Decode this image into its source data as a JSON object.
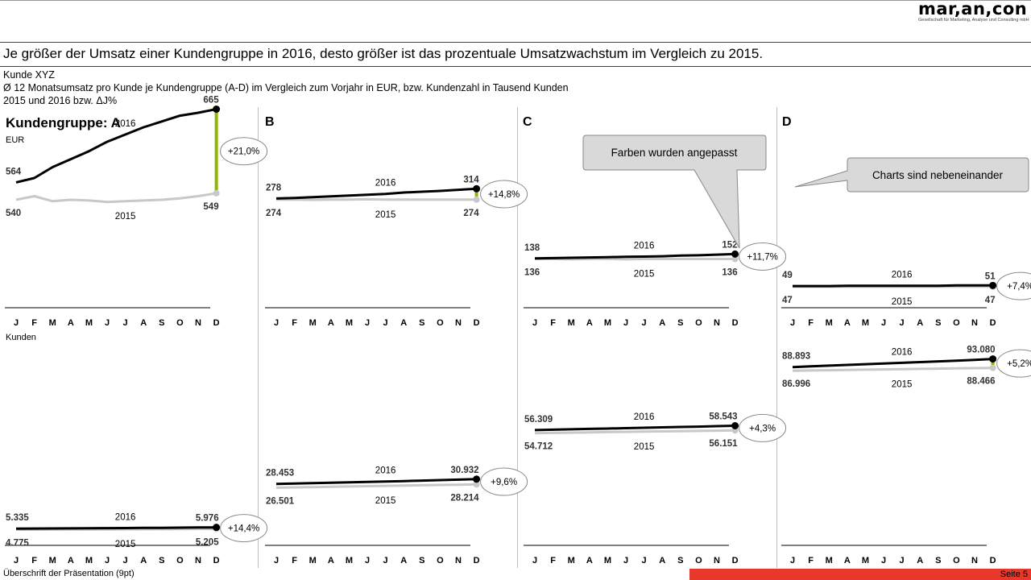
{
  "logo": {
    "text": "mar,an,con",
    "subtitle": "Gesellschaft für Marketing, Analyse und Consulting mbH"
  },
  "headline": "Je größer der Umsatz einer Kundengruppe in 2016, desto größer ist das prozentuale Umsatzwachstum im Vergleich zu 2015.",
  "meta": {
    "line1": "Kunde XYZ",
    "line2": "Ø 12 Monatsumsatz pro Kunde je Kundengruppe (A-D) im Vergleich zum Vorjahr in EUR, bzw. Kundenzahl in Tausend Kunden",
    "line3": "2015 und 2016  bzw. ΔJ%"
  },
  "panel_titles": [
    "Kundengruppe: A",
    "B",
    "C",
    "D"
  ],
  "row_labels": {
    "eur": "EUR",
    "kunden": "Kunden"
  },
  "footer": {
    "left": "Überschrift der Präsentation (9pt)",
    "page": "Seite 5"
  },
  "callouts": [
    {
      "text": "Farben wurden angepasst"
    },
    {
      "text": "Charts sind nebeneinander"
    }
  ],
  "colors": {
    "current": "#000000",
    "previous": "#c8c8c8",
    "delta_positive": "#8db600",
    "footer_bar": "#e8372b"
  },
  "chart_data": [
    {
      "type": "line",
      "group": "A",
      "measure": "EUR",
      "categories": [
        "J",
        "F",
        "M",
        "A",
        "M",
        "J",
        "J",
        "A",
        "S",
        "O",
        "N",
        "D"
      ],
      "series": [
        {
          "name": "2016",
          "values": [
            564,
            570,
            585,
            596,
            607,
            620,
            630,
            640,
            648,
            656,
            660,
            665
          ],
          "start_label": "564",
          "end_label": "665"
        },
        {
          "name": "2015",
          "values": [
            540,
            545,
            538,
            540,
            539,
            537,
            538,
            539,
            540,
            542,
            545,
            549
          ],
          "start_label": "540",
          "end_label": "549"
        }
      ],
      "delta": "+21,0%",
      "ylim": [
        400,
        700
      ]
    },
    {
      "type": "line",
      "group": "A",
      "measure": "Kunden",
      "categories": [
        "J",
        "F",
        "M",
        "A",
        "M",
        "J",
        "J",
        "A",
        "S",
        "O",
        "N",
        "D"
      ],
      "series": [
        {
          "name": "2016",
          "values": [
            5335,
            5380,
            5420,
            5470,
            5520,
            5580,
            5640,
            5700,
            5760,
            5830,
            5900,
            5976
          ],
          "start_label": "5.335",
          "end_label": "5.976"
        },
        {
          "name": "2015",
          "values": [
            4775,
            4800,
            4830,
            4860,
            4890,
            4920,
            4950,
            4990,
            5040,
            5090,
            5150,
            5205
          ],
          "start_label": "4.775",
          "end_label": "5.205"
        }
      ],
      "delta": "+14,4%",
      "ylim": [
        0,
        100000
      ]
    },
    {
      "type": "line",
      "group": "B",
      "measure": "EUR",
      "categories": [
        "J",
        "F",
        "M",
        "A",
        "M",
        "J",
        "J",
        "A",
        "S",
        "O",
        "N",
        "D"
      ],
      "series": [
        {
          "name": "2016",
          "values": [
            278,
            280,
            283,
            286,
            289,
            292,
            295,
            300,
            303,
            306,
            310,
            314
          ],
          "start_label": "278",
          "end_label": "314"
        },
        {
          "name": "2015",
          "values": [
            274,
            274,
            273,
            274,
            274,
            275,
            274,
            274,
            274,
            274,
            274,
            274
          ],
          "start_label": "274",
          "end_label": "274"
        }
      ],
      "delta": "+14,8%",
      "ylim": [
        -100,
        700
      ]
    },
    {
      "type": "line",
      "group": "B",
      "measure": "Kunden",
      "categories": [
        "J",
        "F",
        "M",
        "A",
        "M",
        "J",
        "J",
        "A",
        "S",
        "O",
        "N",
        "D"
      ],
      "series": [
        {
          "name": "2016",
          "values": [
            28453,
            28650,
            28850,
            29050,
            29250,
            29480,
            29700,
            29930,
            30160,
            30400,
            30660,
            30932
          ],
          "start_label": "28.453",
          "end_label": "30.932"
        },
        {
          "name": "2015",
          "values": [
            26501,
            26650,
            26800,
            26960,
            27120,
            27280,
            27440,
            27600,
            27760,
            27920,
            28060,
            28214
          ],
          "start_label": "26.501",
          "end_label": "28.214"
        }
      ],
      "delta": "+9,6%",
      "ylim": [
        0,
        100000
      ]
    },
    {
      "type": "line",
      "group": "C",
      "measure": "EUR",
      "categories": [
        "J",
        "F",
        "M",
        "A",
        "M",
        "J",
        "J",
        "A",
        "S",
        "O",
        "N",
        "D"
      ],
      "series": [
        {
          "name": "2016",
          "values": [
            138,
            139,
            140,
            141,
            142,
            143,
            144,
            145,
            147,
            148,
            150,
            152
          ],
          "start_label": "138",
          "end_label": "152"
        },
        {
          "name": "2015",
          "values": [
            136,
            136,
            135,
            136,
            136,
            135,
            136,
            136,
            136,
            136,
            136,
            136
          ],
          "start_label": "136",
          "end_label": "136"
        }
      ],
      "delta": "+11,7%",
      "ylim": [
        0,
        700
      ]
    },
    {
      "type": "line",
      "group": "C",
      "measure": "Kunden",
      "categories": [
        "J",
        "F",
        "M",
        "A",
        "M",
        "J",
        "J",
        "A",
        "S",
        "O",
        "N",
        "D"
      ],
      "series": [
        {
          "name": "2016",
          "values": [
            56309,
            56500,
            56700,
            56900,
            57100,
            57300,
            57500,
            57700,
            57900,
            58100,
            58320,
            58543
          ],
          "start_label": "56.309",
          "end_label": "58.543"
        },
        {
          "name": "2015",
          "values": [
            54712,
            54840,
            54970,
            55100,
            55230,
            55360,
            55490,
            55620,
            55760,
            55890,
            56020,
            56151
          ],
          "start_label": "54.712",
          "end_label": "56.151"
        }
      ],
      "delta": "+4,3%",
      "ylim": [
        0,
        100000
      ]
    },
    {
      "type": "line",
      "group": "D",
      "measure": "EUR",
      "categories": [
        "J",
        "F",
        "M",
        "A",
        "M",
        "J",
        "J",
        "A",
        "S",
        "O",
        "N",
        "D"
      ],
      "series": [
        {
          "name": "2016",
          "values": [
            49,
            49,
            49,
            50,
            50,
            50,
            50,
            50,
            50,
            51,
            51,
            51
          ],
          "start_label": "49",
          "end_label": "51"
        },
        {
          "name": "2015",
          "values": [
            47,
            47,
            47,
            47,
            47,
            47,
            47,
            47,
            47,
            47,
            47,
            47
          ],
          "start_label": "47",
          "end_label": "47"
        }
      ],
      "delta": "+7,4%",
      "ylim": [
        0,
        700
      ]
    },
    {
      "type": "line",
      "group": "D",
      "measure": "Kunden",
      "categories": [
        "J",
        "F",
        "M",
        "A",
        "M",
        "J",
        "J",
        "A",
        "S",
        "O",
        "N",
        "D"
      ],
      "series": [
        {
          "name": "2016",
          "values": [
            88893,
            89250,
            89620,
            89990,
            90360,
            90730,
            91100,
            91460,
            91820,
            92180,
            92620,
            93080
          ],
          "start_label": "88.893",
          "end_label": "93.080"
        },
        {
          "name": "2015",
          "values": [
            86996,
            87130,
            87270,
            87400,
            87540,
            87670,
            87800,
            87940,
            88070,
            88200,
            88330,
            88466
          ],
          "start_label": "86.996",
          "end_label": "88.466"
        }
      ],
      "delta": "+5,2%",
      "ylim": [
        0,
        100000
      ]
    }
  ]
}
